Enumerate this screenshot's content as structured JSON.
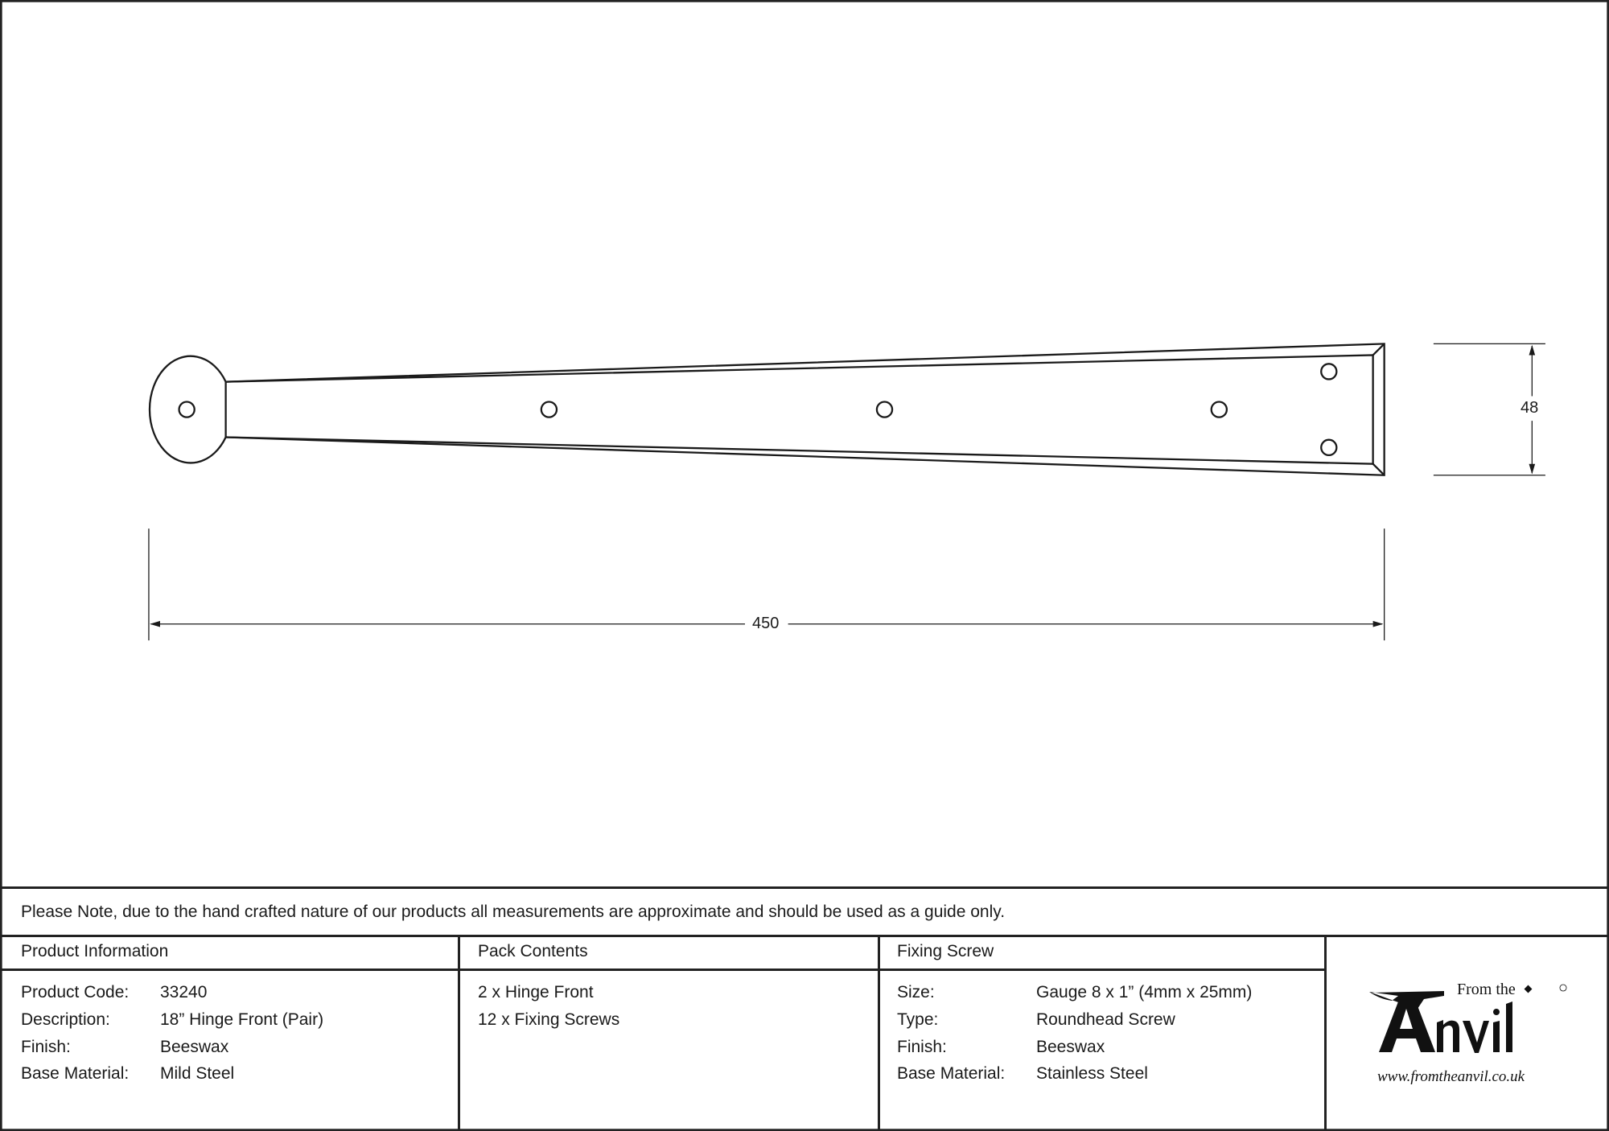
{
  "drawing": {
    "dimensions": {
      "length": "450",
      "width": "48"
    }
  },
  "note": "Please Note, due to the hand crafted nature of our products all measurements are approximate and should be used as a guide only.",
  "product_information": {
    "title": "Product Information",
    "rows": [
      {
        "label": "Product Code:",
        "value": "33240"
      },
      {
        "label": "Description:",
        "value": "18” Hinge Front (Pair)"
      },
      {
        "label": "Finish:",
        "value": "Beeswax"
      },
      {
        "label": "Base Material:",
        "value": "Mild Steel"
      }
    ]
  },
  "pack_contents": {
    "title": "Pack Contents",
    "items": [
      "2 x Hinge Front",
      "12 x Fixing Screws"
    ]
  },
  "fixing_screw": {
    "title": "Fixing Screw",
    "rows": [
      {
        "label": "Size:",
        "value": "Gauge 8 x 1” (4mm x 25mm)"
      },
      {
        "label": "Type:",
        "value": "Roundhead Screw"
      },
      {
        "label": "Finish:",
        "value": "Beeswax"
      },
      {
        "label": "Base Material:",
        "value": "Stainless Steel"
      }
    ]
  },
  "logo": {
    "line1": "From the",
    "line2": "Anvil",
    "url": "www.fromtheanvil.co.uk"
  }
}
